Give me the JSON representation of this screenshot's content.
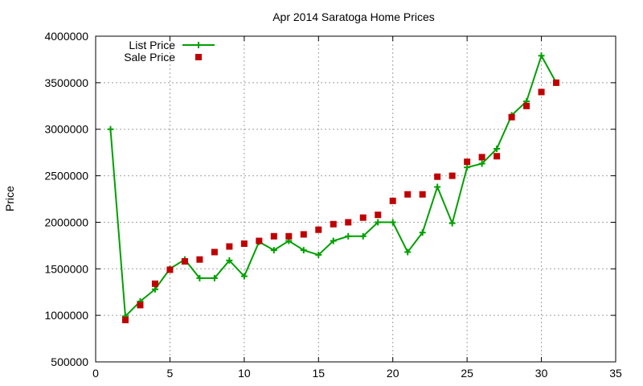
{
  "chart_data": {
    "type": "line",
    "title": "Apr 2014 Saratoga Home Prices",
    "xlabel": "",
    "ylabel": "Price",
    "xlim": [
      0,
      35
    ],
    "ylim": [
      500000,
      4000000
    ],
    "xticks": [
      0,
      5,
      10,
      15,
      20,
      25,
      30,
      35
    ],
    "yticks": [
      500000,
      1000000,
      1500000,
      2000000,
      2500000,
      3000000,
      3500000,
      4000000
    ],
    "grid": true,
    "legend_position": "top-left",
    "series": [
      {
        "name": "List Price",
        "style": "line-plus",
        "color": "#00a000",
        "x": [
          1,
          2,
          3,
          4,
          5,
          6,
          7,
          8,
          9,
          10,
          11,
          12,
          13,
          14,
          15,
          16,
          17,
          18,
          19,
          20,
          21,
          22,
          23,
          24,
          25,
          26,
          27,
          28,
          29,
          30,
          31
        ],
        "values": [
          3000000,
          990000,
          1150000,
          1280000,
          1500000,
          1600000,
          1400000,
          1400000,
          1590000,
          1420000,
          1790000,
          1700000,
          1800000,
          1700000,
          1650000,
          1800000,
          1850000,
          1850000,
          2000000,
          2000000,
          1680000,
          1890000,
          2380000,
          1990000,
          2590000,
          2630000,
          2790000,
          3150000,
          3300000,
          3790000,
          3500000
        ]
      },
      {
        "name": "Sale Price",
        "style": "square-points",
        "color": "#c00000",
        "x": [
          2,
          3,
          4,
          5,
          6,
          7,
          8,
          9,
          10,
          11,
          12,
          13,
          14,
          15,
          16,
          17,
          18,
          19,
          20,
          21,
          22,
          23,
          24,
          25,
          26,
          27,
          28,
          29,
          30,
          31
        ],
        "values": [
          950000,
          1110000,
          1340000,
          1490000,
          1580000,
          1600000,
          1680000,
          1740000,
          1770000,
          1800000,
          1850000,
          1850000,
          1870000,
          1920000,
          1980000,
          2000000,
          2050000,
          2080000,
          2230000,
          2300000,
          2300000,
          2490000,
          2500000,
          2650000,
          2700000,
          2710000,
          3130000,
          3250000,
          3400000,
          3500000
        ]
      }
    ]
  }
}
